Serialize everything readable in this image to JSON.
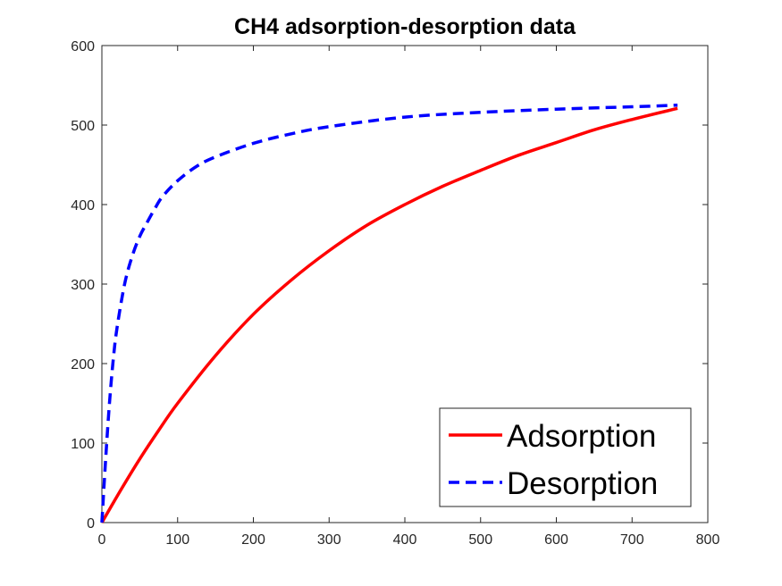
{
  "chart_data": {
    "type": "line",
    "title": "CH4 adsorption-desorption data",
    "xlabel": "",
    "ylabel": "",
    "xlim": [
      0,
      800
    ],
    "ylim": [
      0,
      600
    ],
    "xticks": [
      "0",
      "100",
      "200",
      "300",
      "400",
      "500",
      "600",
      "700",
      "800"
    ],
    "yticks": [
      "0",
      "100",
      "200",
      "300",
      "400",
      "500",
      "600"
    ],
    "grid": false,
    "legend_position": "bottom-right",
    "series": [
      {
        "name": "Adsorption",
        "color": "#ff0000",
        "style": "solid",
        "x": [
          0,
          25,
          50,
          75,
          100,
          150,
          200,
          250,
          300,
          350,
          400,
          450,
          500,
          550,
          600,
          650,
          700,
          760
        ],
        "y": [
          0,
          41,
          80,
          116,
          150,
          210,
          262,
          305,
          342,
          374,
          400,
          423,
          443,
          462,
          478,
          494,
          507,
          521
        ]
      },
      {
        "name": "Desorption",
        "color": "#0000ff",
        "style": "dashed",
        "x": [
          0,
          5,
          10,
          15,
          20,
          30,
          40,
          50,
          60,
          70,
          80,
          100,
          125,
          150,
          200,
          250,
          300,
          400,
          500,
          600,
          700,
          760
        ],
        "y": [
          0,
          80,
          150,
          205,
          245,
          300,
          335,
          360,
          378,
          395,
          410,
          430,
          448,
          460,
          477,
          489,
          498,
          510,
          516,
          520,
          523,
          525
        ]
      }
    ]
  }
}
